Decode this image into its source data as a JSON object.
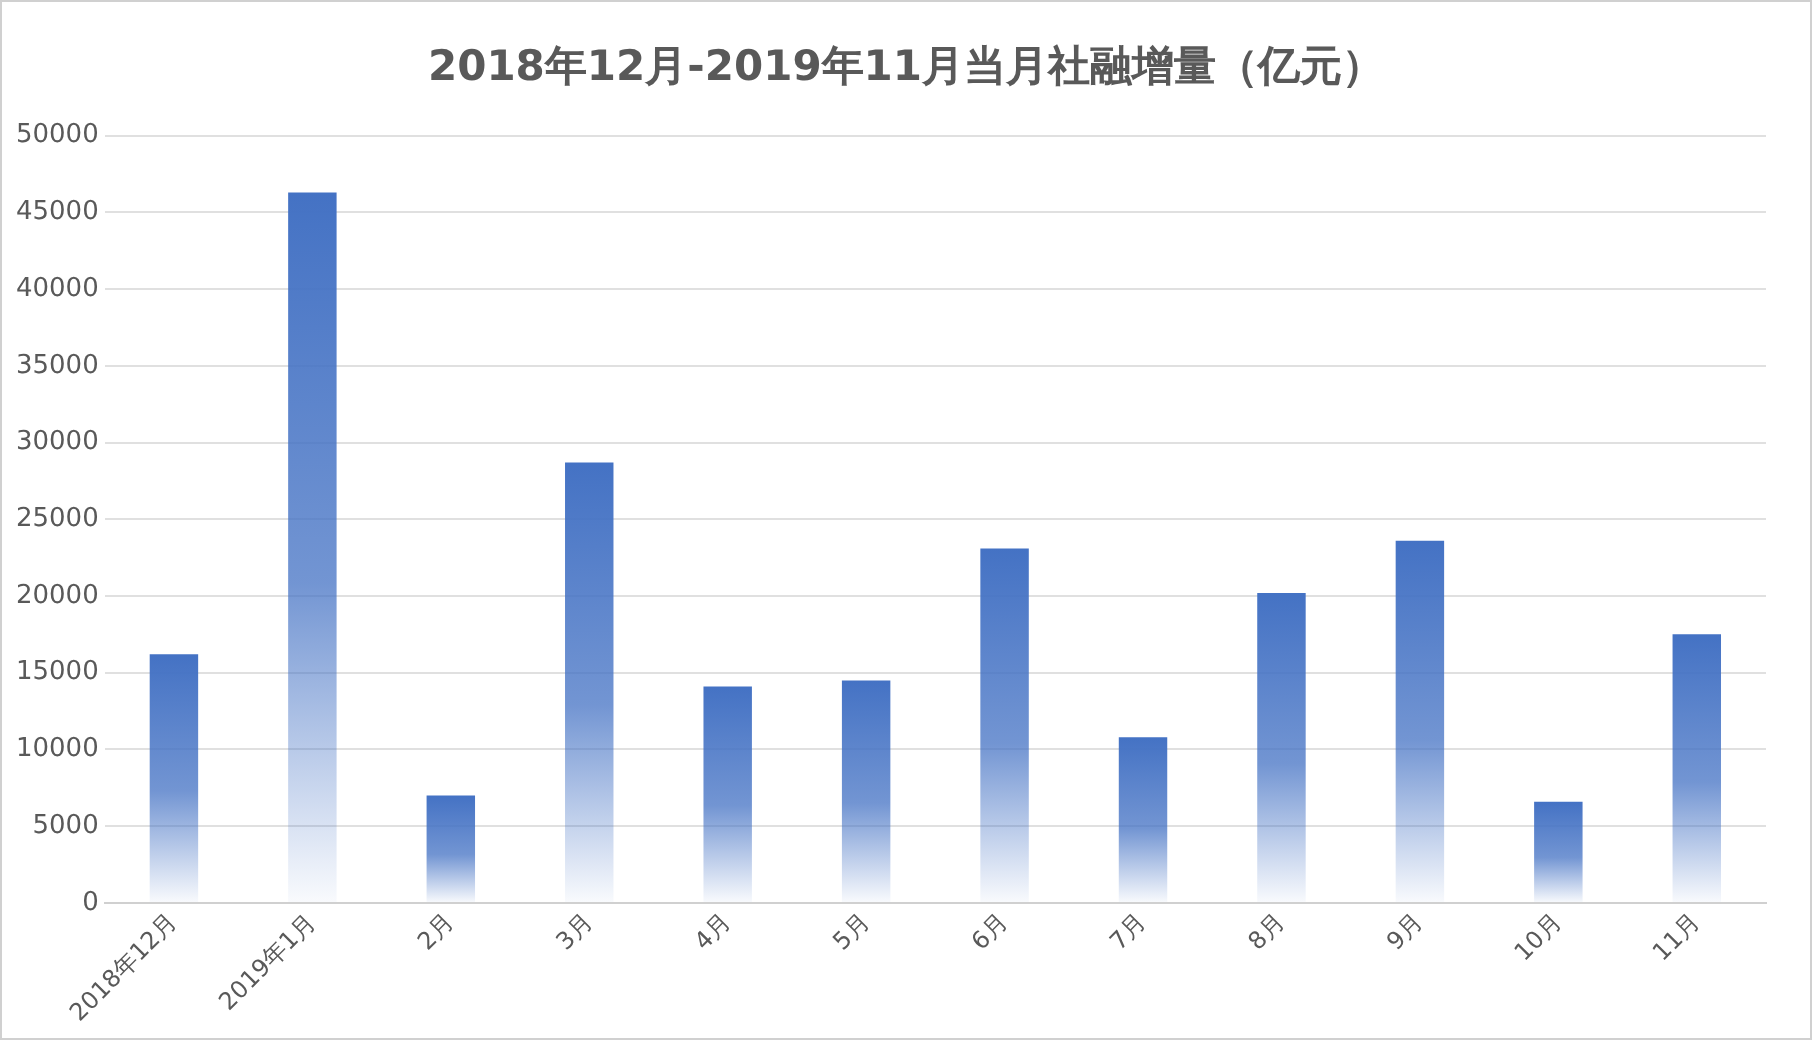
{
  "chart_data": {
    "type": "bar",
    "title": "2018年12月-2019年11月当月社融增量（亿元）",
    "categories": [
      "2018年12月",
      "2019年1月",
      "2月",
      "3月",
      "4月",
      "5月",
      "6月",
      "7月",
      "8月",
      "9月",
      "10月",
      "11月"
    ],
    "values": [
      16200,
      46300,
      7000,
      28700,
      14100,
      14500,
      23100,
      10800,
      20200,
      23600,
      6600,
      17500
    ],
    "color": "#4472c4",
    "ylim": [
      0,
      50000
    ],
    "yticks": [
      0,
      5000,
      10000,
      15000,
      20000,
      25000,
      30000,
      35000,
      40000,
      45000,
      50000
    ],
    "grid": "y",
    "legend": false
  }
}
